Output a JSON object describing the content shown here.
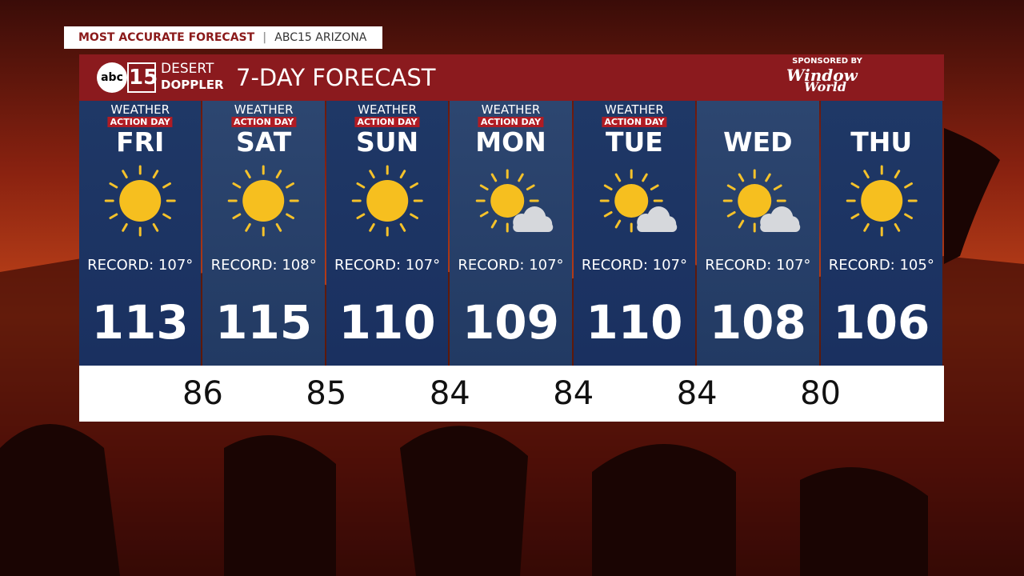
{
  "banner": {
    "left": "MOST ACCURATE FORECAST",
    "right": "ABC15 ARIZONA"
  },
  "header": {
    "logo_abc": "abc",
    "logo_15": "15",
    "logo_line1": "DESERT",
    "logo_line2": "DOPPLER",
    "title": "7-DAY FORECAST",
    "sponsor_label": "SPONSORED BY",
    "sponsor_line1": "Window",
    "sponsor_line2": "World"
  },
  "days": [
    {
      "badge_top": "WEATHER",
      "badge_bottom": "ACTION DAY",
      "name": "FRI",
      "icon": "sunny",
      "record": "RECORD: 107°",
      "high": "113"
    },
    {
      "badge_top": "WEATHER",
      "badge_bottom": "ACTION DAY",
      "name": "SAT",
      "icon": "sunny",
      "record": "RECORD: 108°",
      "high": "115"
    },
    {
      "badge_top": "WEATHER",
      "badge_bottom": "ACTION DAY",
      "name": "SUN",
      "icon": "sunny",
      "record": "RECORD: 107°",
      "high": "110"
    },
    {
      "badge_top": "WEATHER",
      "badge_bottom": "ACTION DAY",
      "name": "MON",
      "icon": "partly",
      "record": "RECORD: 107°",
      "high": "109"
    },
    {
      "badge_top": "WEATHER",
      "badge_bottom": "ACTION DAY",
      "name": "TUE",
      "icon": "partly",
      "record": "RECORD: 107°",
      "high": "110"
    },
    {
      "name": "WED",
      "icon": "partly",
      "record": "RECORD: 107°",
      "high": "108"
    },
    {
      "name": "THU",
      "icon": "sunny",
      "record": "RECORD: 105°",
      "high": "106"
    }
  ],
  "lows": [
    "86",
    "85",
    "84",
    "84",
    "84",
    "80"
  ]
}
